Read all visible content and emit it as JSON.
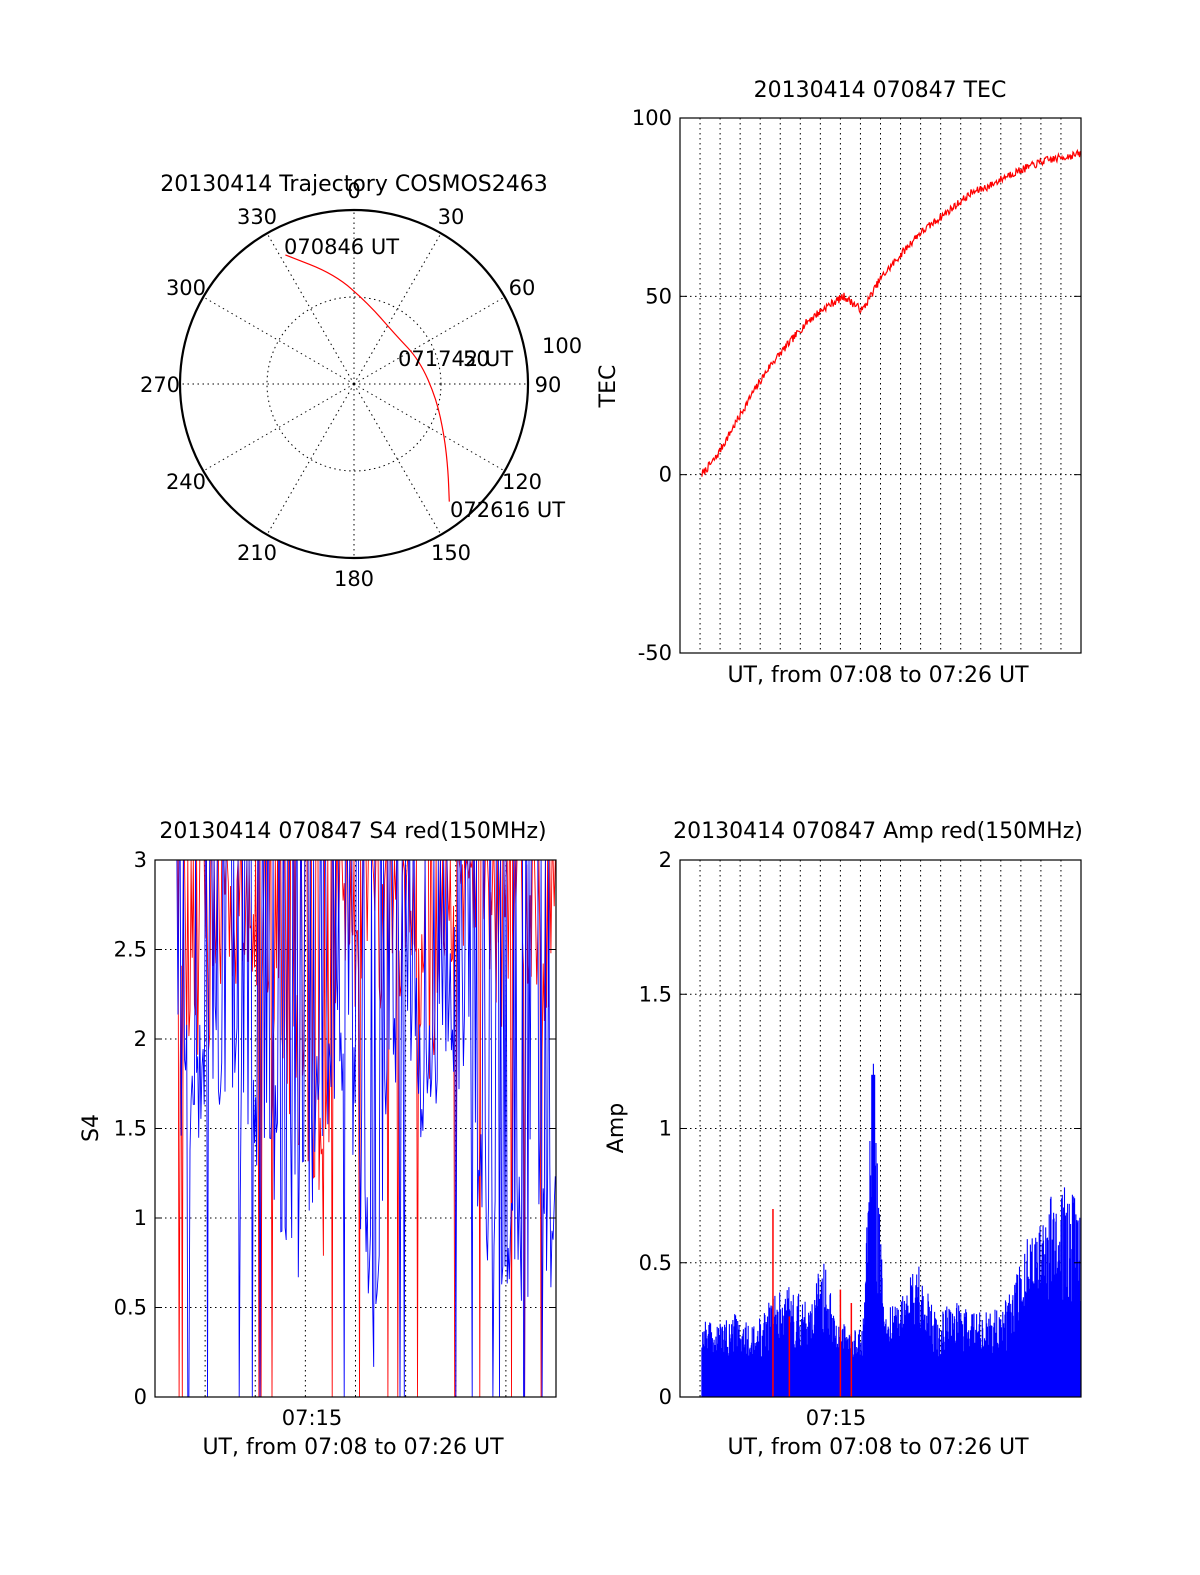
{
  "colors": {
    "red": "#ff0000",
    "blue": "#0000ff",
    "axes": "#000000"
  },
  "chart_data": [
    {
      "type": "polar",
      "title": "20130414 Trajectory COSMOS2463",
      "angle_labels": [
        "0",
        "30",
        "60",
        "90",
        "120",
        "150",
        "180",
        "210",
        "240",
        "270",
        "300",
        "330"
      ],
      "radial_tick_labels": [
        "50",
        "100"
      ],
      "radial_max": 100,
      "grid": true,
      "series": [
        {
          "color": "red",
          "points": [
            {
              "az": 332,
              "r": 84
            },
            {
              "az": 350,
              "r": 64
            },
            {
              "az": 10,
              "r": 47
            },
            {
              "az": 40,
              "r": 37
            },
            {
              "az": 70,
              "r": 40
            },
            {
              "az": 100,
              "r": 48
            },
            {
              "az": 120,
              "r": 60
            },
            {
              "az": 133,
              "r": 74
            },
            {
              "az": 141,
              "r": 87
            }
          ]
        }
      ],
      "annotations": [
        "070846 UT",
        "071742 UT",
        "072616 UT"
      ]
    },
    {
      "type": "line",
      "title": "20130414 070847 TEC",
      "xlabel": "UT, from 07:08 to 07:26 UT",
      "ylabel": "TEC",
      "xlim": [
        0,
        1100
      ],
      "ylim": [
        -50,
        100
      ],
      "yticks": [
        "-50",
        "0",
        "50",
        "100"
      ],
      "x_tick_labels": [],
      "grid": true,
      "series": [
        {
          "color": "red",
          "x": [
            60,
            100,
            150,
            200,
            250,
            300,
            350,
            400,
            450,
            500,
            550,
            600,
            650,
            700,
            750,
            800,
            850,
            900,
            950,
            1000,
            1050,
            1100
          ],
          "y": [
            0,
            5,
            14,
            23,
            31,
            37,
            43,
            47,
            50,
            46,
            55,
            61,
            67,
            71,
            75,
            79,
            81,
            84,
            86,
            88,
            89,
            90
          ]
        }
      ]
    },
    {
      "type": "line",
      "title": "20130414 070847 S4 red(150MHz)",
      "xlabel": "UT, from 07:08 to 07:26 UT",
      "ylabel": "S4",
      "xlim": [
        0,
        1100
      ],
      "ylim": [
        0,
        3
      ],
      "yticks": [
        "0",
        "0.5",
        "1",
        "1.5",
        "2",
        "2.5",
        "3"
      ],
      "x_tick_labels": [
        "07:15"
      ],
      "grid": true,
      "series": [
        {
          "color": "red",
          "x": [
            0,
            100,
            200,
            300,
            400,
            460,
            500,
            600,
            700,
            750,
            800,
            900,
            950,
            1000,
            1050,
            1100
          ],
          "y": [
            2.8,
            2.0,
            2.7,
            2.5,
            1.8,
            1.1,
            2.5,
            2.6,
            2.7,
            2.0,
            2.8,
            2.9,
            2.5,
            2.8,
            2.2,
            2.9
          ]
        },
        {
          "color": "blue",
          "x": [
            0,
            50,
            100,
            150,
            200,
            250,
            300,
            350,
            400,
            450,
            500,
            550,
            600,
            650,
            700,
            750,
            800,
            850,
            900,
            930,
            960,
            1000,
            1050,
            1100
          ],
          "y": [
            2.6,
            2.1,
            1.6,
            2.2,
            1.9,
            1.4,
            1.8,
            1.2,
            1.0,
            1.7,
            2.1,
            1.5,
            0.6,
            1.9,
            2.3,
            1.6,
            2.4,
            2.0,
            1.2,
            1.0,
            1.1,
            0.9,
            1.1,
            1.0
          ]
        }
      ]
    },
    {
      "type": "bar",
      "title": "20130414 070847 Amp red(150MHz)",
      "xlabel": "UT, from 07:08 to 07:26 UT",
      "ylabel": "Amp",
      "xlim": [
        0,
        1100
      ],
      "ylim": [
        0,
        2
      ],
      "yticks": [
        "0",
        "0.5",
        "1",
        "1.5",
        "2"
      ],
      "x_tick_labels": [
        "07:15"
      ],
      "grid": true,
      "series": [
        {
          "color": "blue",
          "x": [
            60,
            100,
            150,
            200,
            250,
            300,
            350,
            400,
            430,
            460,
            500,
            530,
            560,
            600,
            650,
            700,
            750,
            800,
            850,
            900,
            960,
            1000,
            1050,
            1100
          ],
          "y": [
            0.3,
            0.25,
            0.3,
            0.25,
            0.35,
            0.4,
            0.35,
            0.5,
            0.3,
            0.25,
            0.25,
            1.2,
            0.3,
            0.35,
            0.5,
            0.3,
            0.35,
            0.3,
            0.3,
            0.35,
            0.6,
            0.7,
            0.75,
            0.7
          ]
        },
        {
          "color": "red",
          "x": [
            255,
            300,
            440,
            470
          ],
          "y": [
            0.7,
            0.3,
            0.4,
            0.35
          ]
        }
      ]
    }
  ]
}
